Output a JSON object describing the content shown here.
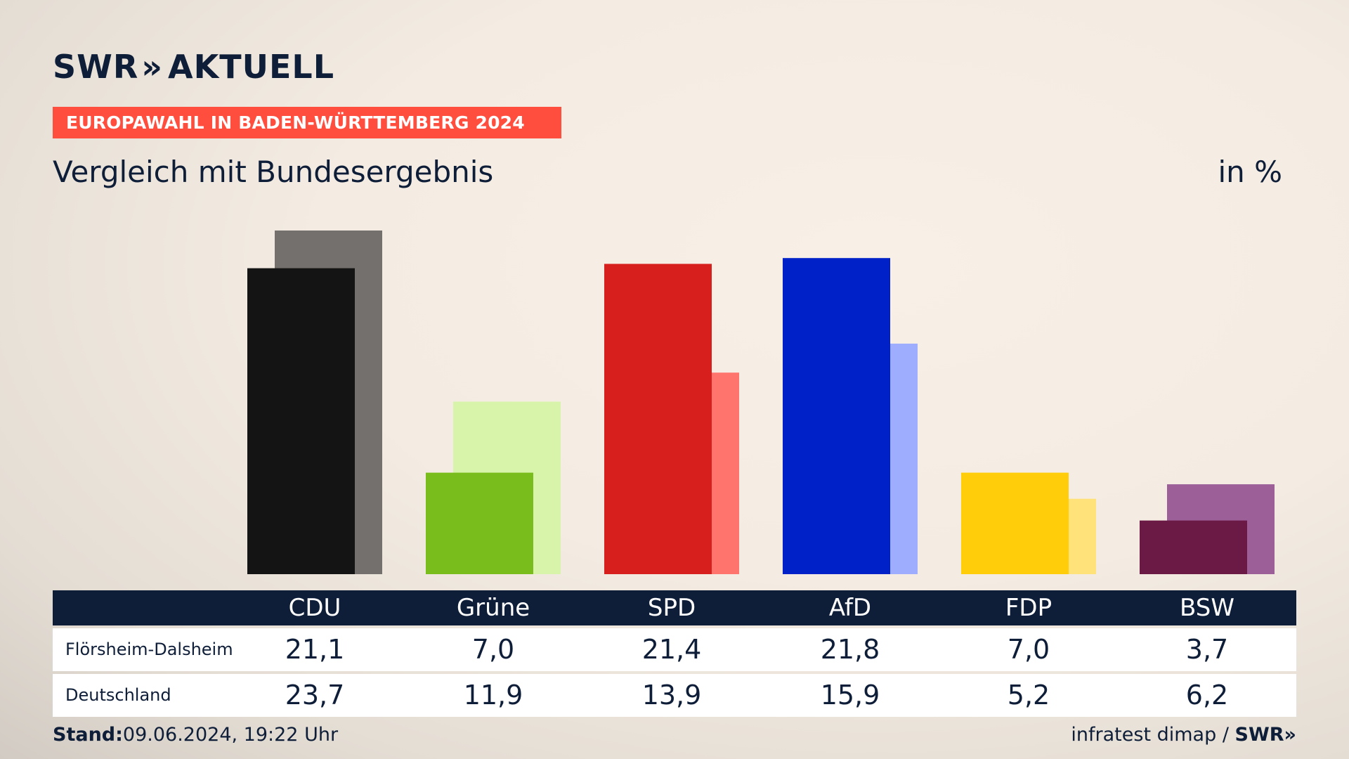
{
  "brand": {
    "swr": "SWR",
    "chevrons": "»",
    "product": "AKTUELL"
  },
  "banner": "EUROPAWAHL IN BADEN-WÜRTTEMBERG 2024",
  "subtitle": "Vergleich mit Bundesergebnis",
  "unit": "in %",
  "table": {
    "rows": [
      {
        "label": "Flörsheim-Dalsheim",
        "values": [
          "21,1",
          "7,0",
          "21,4",
          "21,8",
          "7,0",
          "3,7"
        ]
      },
      {
        "label": "Deutschland",
        "values": [
          "23,7",
          "11,9",
          "13,9",
          "15,9",
          "5,2",
          "6,2"
        ]
      }
    ]
  },
  "footer": {
    "stand_label": "Stand:",
    "stand_value": "09.06.2024, 19:22 Uhr",
    "source": "infratest dimap /",
    "source_logo": "SWR»"
  },
  "colors": {
    "navy": "#0f1e38",
    "banner": "#ff4e3d"
  },
  "chart_data": {
    "type": "bar",
    "categories": [
      "CDU",
      "Grüne",
      "SPD",
      "AfD",
      "FDP",
      "BSW"
    ],
    "series": [
      {
        "name": "Flörsheim-Dalsheim",
        "values": [
          21.1,
          7.0,
          21.4,
          21.8,
          7.0,
          3.7
        ],
        "colors": [
          "#141414",
          "#79bd1c",
          "#d7201e",
          "#0021c8",
          "#ffcd0a",
          "#6a1a44"
        ]
      },
      {
        "name": "Deutschland",
        "values": [
          23.7,
          11.9,
          13.9,
          15.9,
          5.2,
          6.2
        ],
        "colors": [
          "#74706d",
          "#d8f4aa",
          "#ff746c",
          "#9fadfe",
          "#ffe37a",
          "#9c5f98"
        ]
      }
    ],
    "ylabel": "in %",
    "ylim": [
      0,
      23.7
    ],
    "grid": false,
    "legend": "table-below"
  }
}
